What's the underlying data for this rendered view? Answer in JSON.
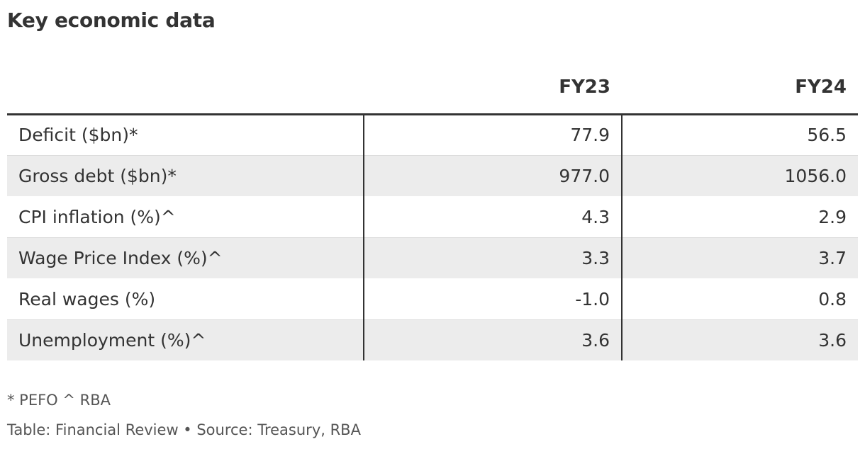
{
  "chart_data": {
    "type": "table",
    "title": "Key economic data",
    "columns": [
      "",
      "FY23",
      "FY24"
    ],
    "rows": [
      {
        "label": "Deficit ($bn)*",
        "values": [
          "77.9",
          "56.5"
        ]
      },
      {
        "label": "Gross debt ($bn)*",
        "values": [
          "977.0",
          "1056.0"
        ]
      },
      {
        "label": "CPI inflation (%)^",
        "values": [
          "4.3",
          "2.9"
        ]
      },
      {
        "label": "Wage Price Index (%)^",
        "values": [
          "3.3",
          "3.7"
        ]
      },
      {
        "label": "Real wages (%)",
        "values": [
          "-1.0",
          "0.8"
        ]
      },
      {
        "label": "Unemployment (%)^",
        "values": [
          "3.6",
          "3.6"
        ]
      }
    ],
    "notes": "* PEFO ^ RBA",
    "source": "Table: Financial Review • Source: Treasury, RBA"
  }
}
